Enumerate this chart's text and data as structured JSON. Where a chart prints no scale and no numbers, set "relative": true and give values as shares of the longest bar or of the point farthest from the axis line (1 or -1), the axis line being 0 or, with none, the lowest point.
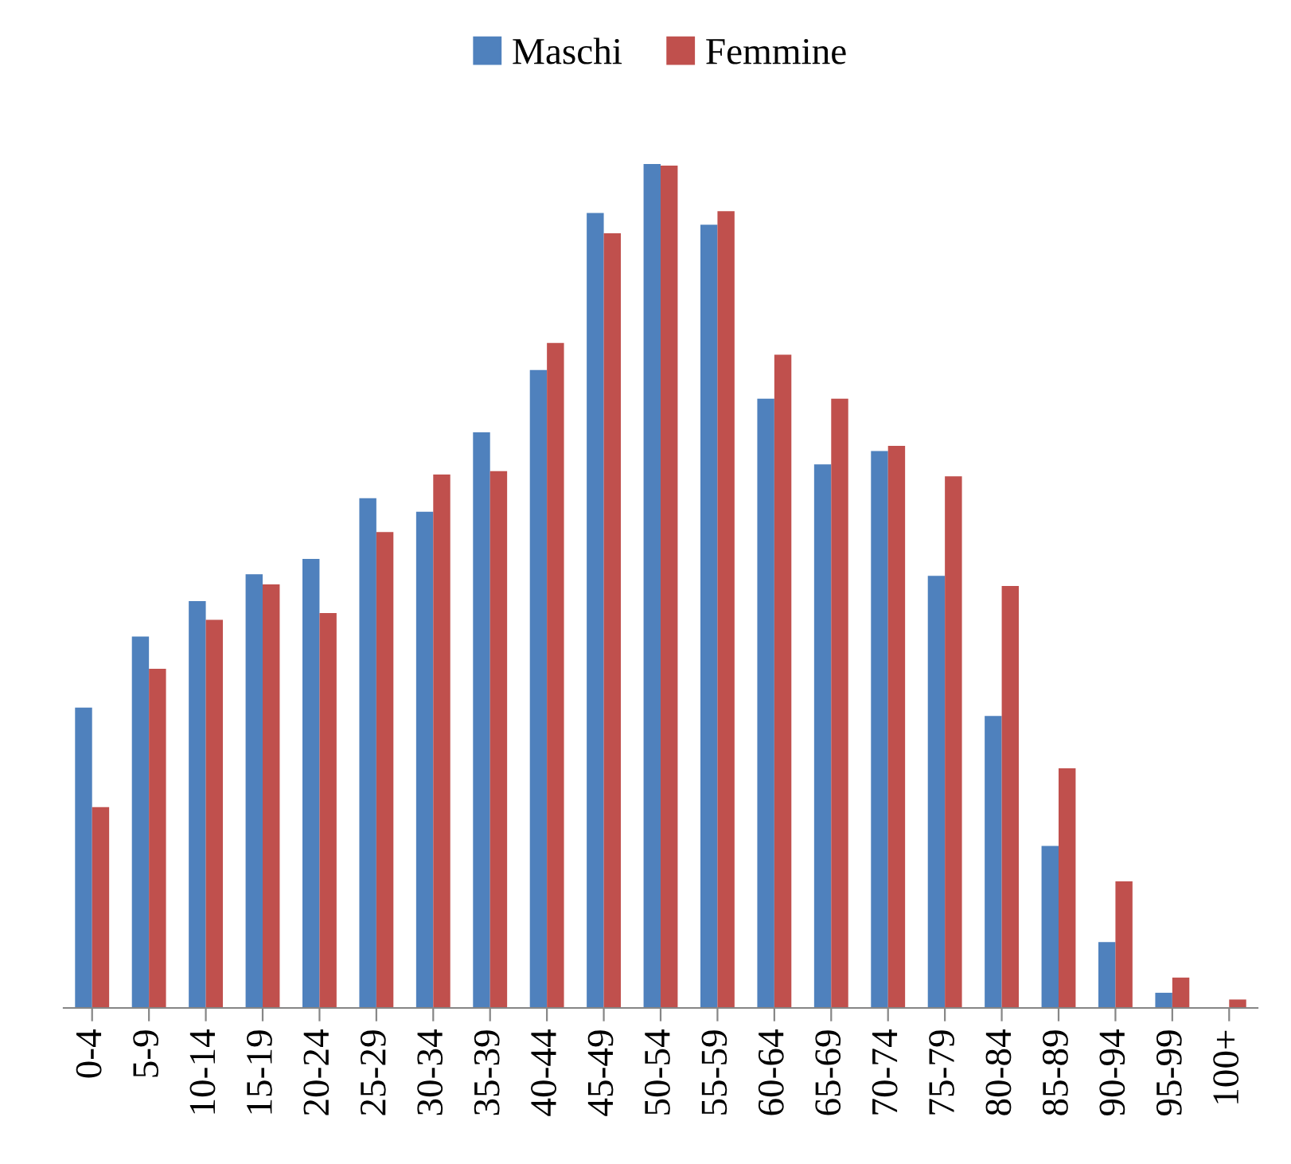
{
  "chart_data": {
    "type": "bar",
    "relative": true,
    "legend": "top",
    "grid": false,
    "categories": [
      "0-4",
      "5-9",
      "10-14",
      "15-19",
      "20-24",
      "25-29",
      "30-34",
      "35-39",
      "40-44",
      "45-49",
      "50-54",
      "55-59",
      "60-64",
      "65-69",
      "70-74",
      "75-79",
      "80-84",
      "85-89",
      "90-94",
      "95-99",
      "100+"
    ],
    "series": [
      {
        "name": "Maschi",
        "color": "#4f81bd",
        "values": [
          0.356,
          0.44,
          0.482,
          0.514,
          0.532,
          0.604,
          0.588,
          0.682,
          0.756,
          0.942,
          1,
          0.928,
          0.722,
          0.644,
          0.66,
          0.512,
          0.346,
          0.192,
          0.078,
          0.018,
          0
        ]
      },
      {
        "name": "Femmine",
        "color": "#c0504d",
        "values": [
          0.238,
          0.402,
          0.46,
          0.502,
          0.468,
          0.564,
          0.632,
          0.636,
          0.788,
          0.918,
          0.998,
          0.944,
          0.774,
          0.722,
          0.666,
          0.63,
          0.5,
          0.284,
          0.15,
          0.036,
          0.01
        ]
      }
    ]
  }
}
